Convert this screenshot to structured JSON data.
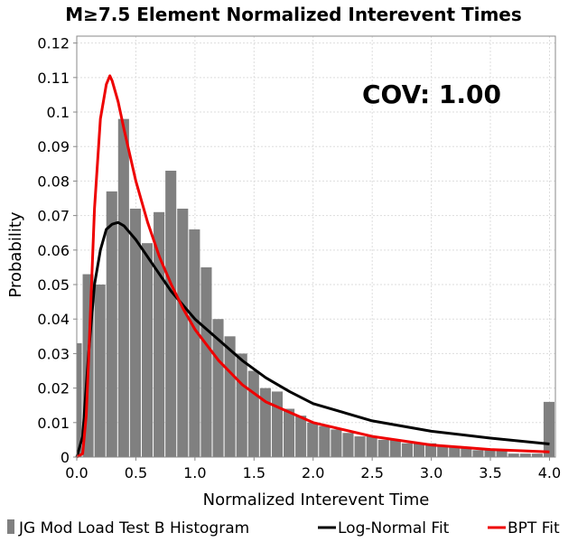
{
  "chart_data": {
    "type": "bar",
    "title": "M≥7.5 Element Normalized Interevent Times",
    "xlabel": "Normalized Interevent Time",
    "ylabel": "Probability",
    "xlim": [
      0.0,
      4.05
    ],
    "ylim": [
      0.0,
      0.122
    ],
    "x_ticks": [
      "0.0",
      "0.5",
      "1.0",
      "1.5",
      "2.0",
      "2.5",
      "3.0",
      "3.5",
      "4.0"
    ],
    "y_ticks": [
      "0",
      "0.01",
      "0.02",
      "0.03",
      "0.04",
      "0.05",
      "0.06",
      "0.07",
      "0.08",
      "0.09",
      "0.1",
      "0.11",
      "0.12"
    ],
    "grid": true,
    "annotation": "COV: 1.00",
    "legend_position": "bottom",
    "colors": {
      "histogram": "#808080",
      "lognormal": "#000000",
      "bpt": "#ee0000",
      "grid": "#dddddd"
    },
    "series": [
      {
        "name": "JG Mod Load Test B Histogram",
        "kind": "histogram",
        "bin_width": 0.1,
        "bin_centers": [
          0.0,
          0.1,
          0.2,
          0.3,
          0.4,
          0.5,
          0.6,
          0.7,
          0.8,
          0.9,
          1.0,
          1.1,
          1.2,
          1.3,
          1.4,
          1.5,
          1.6,
          1.7,
          1.8,
          1.9,
          2.0,
          2.1,
          2.2,
          2.3,
          2.4,
          2.5,
          2.6,
          2.7,
          2.8,
          2.9,
          3.0,
          3.1,
          3.2,
          3.3,
          3.4,
          3.5,
          3.6,
          3.7,
          3.8,
          3.9,
          4.0
        ],
        "values": [
          0.033,
          0.053,
          0.05,
          0.077,
          0.098,
          0.072,
          0.062,
          0.071,
          0.083,
          0.072,
          0.066,
          0.055,
          0.04,
          0.035,
          0.03,
          0.025,
          0.02,
          0.019,
          0.014,
          0.012,
          0.01,
          0.009,
          0.008,
          0.007,
          0.006,
          0.006,
          0.005,
          0.005,
          0.004,
          0.004,
          0.004,
          0.003,
          0.003,
          0.003,
          0.002,
          0.002,
          0.002,
          0.001,
          0.001,
          0.001,
          0.016
        ]
      },
      {
        "name": "Log-Normal Fit",
        "kind": "line",
        "x": [
          0.0,
          0.05,
          0.1,
          0.15,
          0.2,
          0.25,
          0.3,
          0.35,
          0.4,
          0.5,
          0.6,
          0.7,
          0.8,
          0.9,
          1.0,
          1.2,
          1.4,
          1.6,
          1.8,
          2.0,
          2.5,
          3.0,
          3.5,
          4.0
        ],
        "y": [
          0.0,
          0.006,
          0.03,
          0.05,
          0.06,
          0.066,
          0.0675,
          0.068,
          0.067,
          0.063,
          0.058,
          0.053,
          0.048,
          0.044,
          0.04,
          0.034,
          0.028,
          0.023,
          0.019,
          0.0155,
          0.0105,
          0.0075,
          0.0055,
          0.0038
        ]
      },
      {
        "name": "BPT Fit",
        "kind": "line",
        "x": [
          0.0,
          0.05,
          0.08,
          0.1,
          0.15,
          0.2,
          0.25,
          0.28,
          0.3,
          0.35,
          0.4,
          0.5,
          0.6,
          0.7,
          0.8,
          0.9,
          1.0,
          1.2,
          1.4,
          1.6,
          1.8,
          2.0,
          2.5,
          3.0,
          3.5,
          4.0
        ],
        "y": [
          0.0,
          0.001,
          0.012,
          0.028,
          0.072,
          0.098,
          0.108,
          0.1105,
          0.109,
          0.103,
          0.095,
          0.08,
          0.068,
          0.058,
          0.05,
          0.043,
          0.037,
          0.028,
          0.021,
          0.016,
          0.013,
          0.01,
          0.006,
          0.0035,
          0.0022,
          0.0015
        ]
      }
    ]
  }
}
